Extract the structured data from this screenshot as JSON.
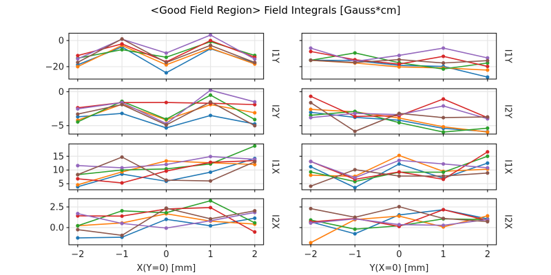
{
  "chart_data": {
    "type": "line",
    "title": "<Good Field Region> Field Integrals [Gauss*cm]",
    "series_colors": [
      "#1f77b4",
      "#ff7f0e",
      "#2ca02c",
      "#d62728",
      "#9467bd",
      "#8c564b"
    ],
    "x": [
      -2,
      -1,
      0,
      1,
      2
    ],
    "xlim": [
      -2.2,
      2.2
    ],
    "x_ticks": [
      -2,
      -1,
      0,
      1,
      2
    ],
    "x_tick_labels": [
      "−2",
      "−1",
      "0",
      "1",
      "2"
    ],
    "grid": true,
    "columns": [
      {
        "xlabel": "X(Y=0) [mm]"
      },
      {
        "xlabel": "Y(X=0) [mm]"
      }
    ],
    "rows": [
      {
        "ylabel": "I1Y",
        "ylim": [
          -29.5,
          5.6
        ],
        "y_ticks": [
          0,
          -20
        ],
        "y_tick_labels": [
          "0",
          "−20"
        ],
        "panels": [
          {
            "series": [
              {
                "values": [
                  -18.6,
                  -4.9,
                  -24.7,
                  -6.3,
                  -17.2
                ]
              },
              {
                "values": [
                  -20.0,
                  -3.7,
                  -18.6,
                  -5.8,
                  -18.0
                ]
              },
              {
                "values": [
                  -13.5,
                  -7.0,
                  -12.8,
                  -0.9,
                  -11.4
                ]
              },
              {
                "values": [
                  -11.5,
                  -2.6,
                  -16.3,
                  0.0,
                  -12.8
                ]
              },
              {
                "values": [
                  -14.0,
                  1.0,
                  -9.6,
                  4.2,
                  -14.2
                ]
              },
              {
                "values": [
                  -16.7,
                  1.2,
                  -16.8,
                  -3.7,
                  -16.8
                ]
              }
            ]
          },
          {
            "series": [
              {
                "values": [
                  -15.0,
                  -15.4,
                  -19.0,
                  -19.8,
                  -28.0
                ]
              },
              {
                "values": [
                  -15.1,
                  -17.2,
                  -20.2,
                  -21.0,
                  -22.6
                ]
              },
              {
                "values": [
                  -15.1,
                  -9.5,
                  -17.0,
                  -21.8,
                  -17.2
                ]
              },
              {
                "values": [
                  -8.4,
                  -14.7,
                  -18.0,
                  -12.1,
                  -19.8
                ]
              },
              {
                "values": [
                  -5.8,
                  -16.0,
                  -11.4,
                  -5.8,
                  -13.3
                ]
              },
              {
                "values": [
                  -15.1,
                  -16.8,
                  -14.6,
                  -17.2,
                  -15.4
                ]
              }
            ]
          }
        ]
      },
      {
        "ylabel": "I2Y",
        "ylim": [
          -6.24,
          0.44
        ],
        "y_ticks": [
          0,
          -5
        ],
        "y_tick_labels": [
          "0",
          "−5"
        ],
        "panels": [
          {
            "series": [
              {
                "values": [
                  -3.7,
                  -3.2,
                  -5.33,
                  -3.5,
                  -4.75
                ]
              },
              {
                "values": [
                  -4.2,
                  -1.85,
                  -4.15,
                  -1.9,
                  -3.1
                ]
              },
              {
                "values": [
                  -4.45,
                  -1.42,
                  -4.05,
                  -0.5,
                  -4.1
                ]
              },
              {
                "values": [
                  -2.37,
                  -1.6,
                  -1.59,
                  -1.7,
                  -1.9
                ]
              },
              {
                "values": [
                  -2.53,
                  -1.6,
                  -4.7,
                  0.22,
                  -1.5
                ]
              },
              {
                "values": [
                  -3.3,
                  -1.9,
                  -4.9,
                  -1.5,
                  -5.0
                ]
              }
            ]
          },
          {
            "series": [
              {
                "values": [
                  -3.04,
                  -3.78,
                  -4.2,
                  -5.4,
                  -5.88
                ]
              },
              {
                "values": [
                  -2.6,
                  -2.97,
                  -3.88,
                  -5.17,
                  -5.94
                ]
              },
              {
                "values": [
                  -3.48,
                  -2.9,
                  -4.56,
                  -5.94,
                  -5.37
                ]
              },
              {
                "values": [
                  -0.68,
                  -3.64,
                  -3.54,
                  -1.08,
                  -3.82
                ]
              },
              {
                "values": [
                  -3.82,
                  -3.2,
                  -3.37,
                  -2.1,
                  -3.99
                ]
              },
              {
                "values": [
                  -1.62,
                  -5.84,
                  -3.2,
                  -3.82,
                  -3.72
                ]
              }
            ]
          }
        ]
      },
      {
        "ylabel": "I1X",
        "ylim": [
          2.8,
          19.5
        ],
        "y_ticks": [
          15,
          10,
          5
        ],
        "y_tick_labels": [
          "15",
          "10",
          "5"
        ],
        "panels": [
          {
            "series": [
              {
                "values": [
                  3.9,
                  8.5,
                  5.9,
                  9.2,
                  14.2
                ]
              },
              {
                "values": [
                  4.6,
                  9.3,
                  13.3,
                  12.6,
                  12.0
                ]
              },
              {
                "values": [
                  8.3,
                  10.0,
                  10.4,
                  12.2,
                  18.75
                ]
              },
              {
                "values": [
                  6.8,
                  5.3,
                  9.6,
                  12.8,
                  13.4
                ]
              },
              {
                "values": [
                  11.6,
                  10.8,
                  12.0,
                  14.9,
                  13.9
                ]
              },
              {
                "values": [
                  8.3,
                  14.7,
                  6.3,
                  6.0,
                  13.0
                ]
              }
            ]
          },
          {
            "series": [
              {
                "values": [
                  11.2,
                  3.6,
                  12.2,
                  7.0,
                  12.5
                ]
              },
              {
                "values": [
                  8.1,
                  7.7,
                  15.3,
                  9.5,
                  10.3
                ]
              },
              {
                "values": [
                  9.3,
                  5.8,
                  9.2,
                  9.2,
                  15.0
                ]
              },
              {
                "values": [
                  13.1,
                  6.6,
                  9.3,
                  6.6,
                  16.6
                ]
              },
              {
                "values": [
                  13.1,
                  7.2,
                  13.5,
                  12.2,
                  10.8
                ]
              },
              {
                "values": [
                  4.1,
                  10.1,
                  7.8,
                  7.8,
                  8.9
                ]
              }
            ]
          }
        ]
      },
      {
        "ylabel": "I2X",
        "ylim": [
          -2.08,
          3.5
        ],
        "y_ticks": [
          2.5,
          0.0
        ],
        "y_tick_labels": [
          "2.5",
          "0.0"
        ],
        "panels": [
          {
            "series": [
              {
                "values": [
                  -1.25,
                  -1.17,
                  1.0,
                  0.22,
                  1.14
                ]
              },
              {
                "values": [
                  0.22,
                  0.56,
                  1.67,
                  0.78,
                  0.42
                ]
              },
              {
                "values": [
                  0.22,
                  2.03,
                  1.8,
                  3.25,
                  0.58
                ]
              },
              {
                "values": [
                  1.42,
                  1.39,
                  2.25,
                  2.42,
                  -0.53
                ]
              },
              {
                "values": [
                  1.7,
                  0.5,
                  -0.06,
                  0.83,
                  1.83
                ]
              },
              {
                "values": [
                  -0.25,
                  -0.94,
                  2.36,
                  1.06,
                  2.03
                ]
              }
            ]
          },
          {
            "series": [
              {
                "values": [
                  0.69,
                  -0.75,
                  1.53,
                  2.17,
                  1.06
                ]
              },
              {
                "values": [
                  -1.83,
                  0.97,
                  1.39,
                  0.08,
                  1.42
                ]
              },
              {
                "values": [
                  0.92,
                  -0.19,
                  0.22,
                  1.06,
                  0.97
                ]
              },
              {
                "values": [
                  0.69,
                  1.11,
                  0.14,
                  2.17,
                  0.86
                ]
              },
              {
                "values": [
                  0.55,
                  1.06,
                  0.36,
                  0.28,
                  0.97
                ]
              },
              {
                "values": [
                  2.3,
                  1.25,
                  2.53,
                  1.11,
                  0.72
                ]
              }
            ]
          }
        ]
      }
    ]
  }
}
